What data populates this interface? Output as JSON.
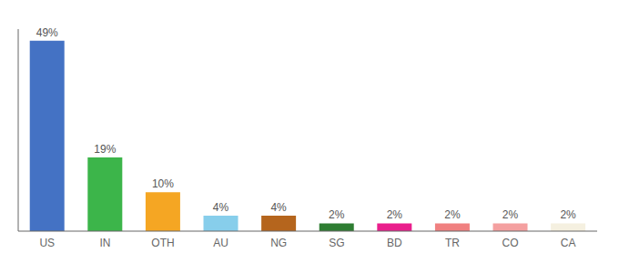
{
  "chart_data": {
    "type": "bar",
    "categories": [
      "US",
      "IN",
      "OTH",
      "AU",
      "NG",
      "SG",
      "BD",
      "TR",
      "CO",
      "CA"
    ],
    "values": [
      49,
      19,
      10,
      4,
      4,
      2,
      2,
      2,
      2,
      2
    ],
    "value_labels": [
      "49%",
      "19%",
      "10%",
      "4%",
      "4%",
      "2%",
      "2%",
      "2%",
      "2%",
      "2%"
    ],
    "colors": [
      "#4472c4",
      "#3cb54a",
      "#f5a623",
      "#87ceeb",
      "#b5651d",
      "#2e7d32",
      "#e91e8c",
      "#f08080",
      "#f4a0a0",
      "#f5f0e0"
    ],
    "ylim": [
      0,
      52
    ],
    "data_labels": true,
    "tick_labels": "x",
    "grid": false
  }
}
